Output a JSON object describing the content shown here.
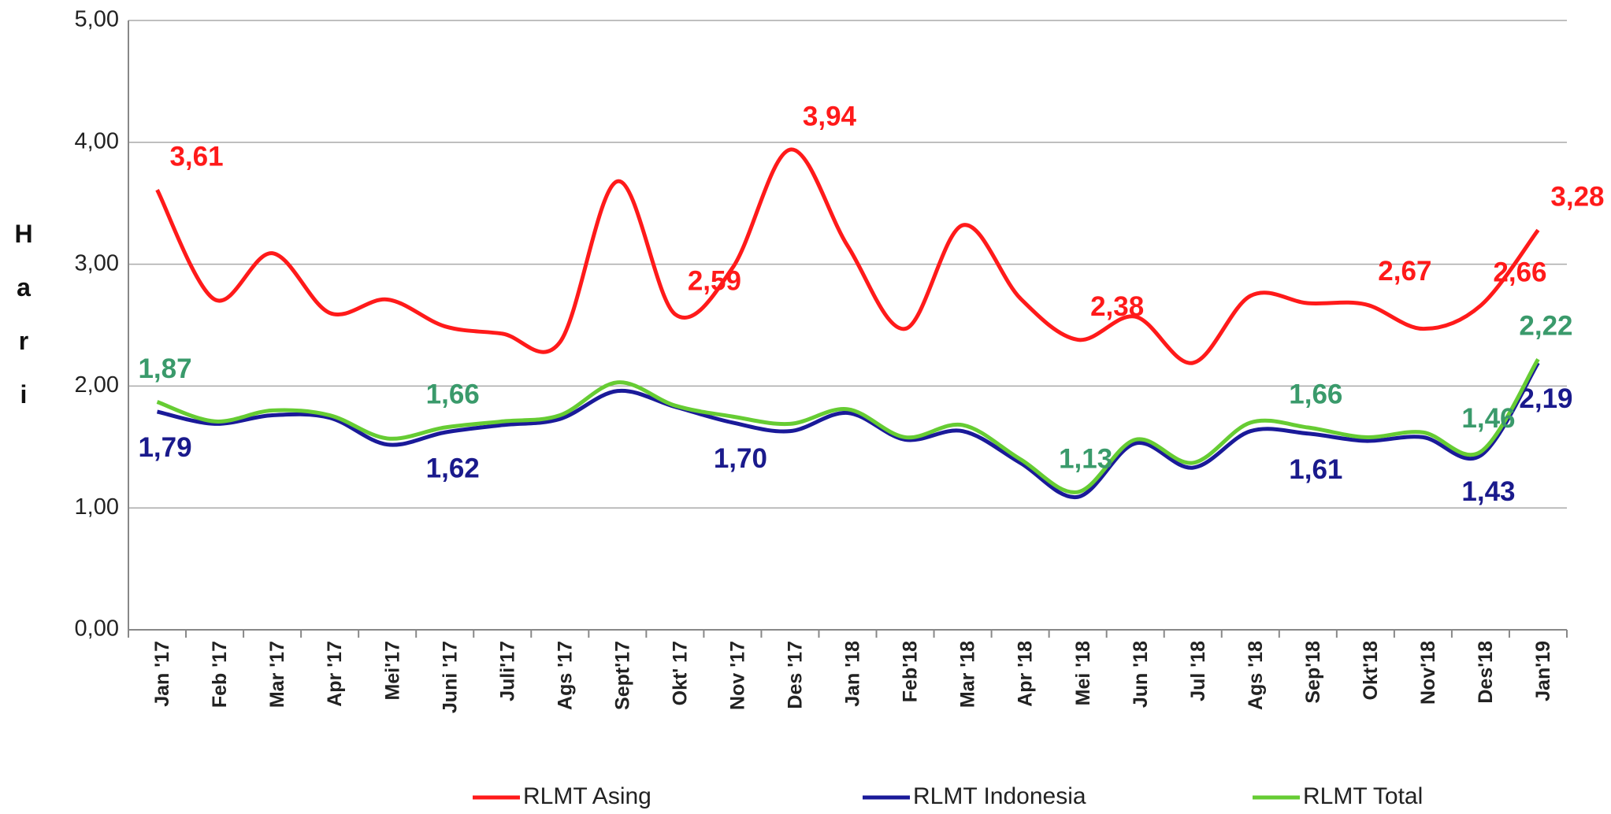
{
  "chart_data": {
    "type": "line",
    "ylabel": "Hari",
    "categories": [
      "Jan '17",
      "Feb '17",
      "Mar '17",
      "Apr '17",
      "Mei'17",
      "Juni '17",
      "Juli'17",
      "Ags '17",
      "Sept'17",
      "Okt' 17",
      "Nov '17",
      "Des '17",
      "Jan '18",
      "Feb'18",
      "Mar '18",
      "Apr '18",
      "Mei '18",
      "Jun '18",
      "Jul '18",
      "Ags '18",
      "Sep'18",
      "Okt'18",
      "Nov'18",
      "Des'18",
      "Jan'19"
    ],
    "series": [
      {
        "name": "RLMT Asing",
        "color": "#ff1a1a",
        "label_color": "#ff1a1a",
        "values": [
          3.61,
          2.71,
          3.09,
          2.6,
          2.71,
          2.49,
          2.43,
          2.36,
          3.68,
          2.59,
          2.97,
          3.94,
          3.15,
          2.47,
          3.32,
          2.72,
          2.38,
          2.57,
          2.19,
          2.74,
          2.68,
          2.67,
          2.47,
          2.66,
          3.28
        ],
        "value_labels": [
          "3,61",
          null,
          null,
          null,
          null,
          null,
          null,
          null,
          null,
          "2,59",
          null,
          "3,94",
          null,
          null,
          null,
          null,
          "2,38",
          null,
          null,
          null,
          null,
          "2,67",
          null,
          "2,66",
          "3,28"
        ]
      },
      {
        "name": "RLMT Indonesia",
        "color": "#1a1a99",
        "label_color": "#1a1a8c",
        "values": [
          1.79,
          1.69,
          1.76,
          1.74,
          1.52,
          1.62,
          1.68,
          1.73,
          1.96,
          1.83,
          1.7,
          1.63,
          1.78,
          1.56,
          1.63,
          1.37,
          1.09,
          1.53,
          1.33,
          1.63,
          1.61,
          1.55,
          1.58,
          1.43,
          2.19
        ],
        "value_labels": [
          "1,79",
          null,
          null,
          null,
          null,
          "1,62",
          null,
          null,
          null,
          null,
          "1,70",
          null,
          null,
          null,
          null,
          null,
          null,
          null,
          null,
          null,
          "1,61",
          null,
          null,
          "1,43",
          "2,19"
        ]
      },
      {
        "name": "RLMT Total",
        "color": "#66cc33",
        "label_color": "#3a9a6b",
        "values": [
          1.87,
          1.71,
          1.8,
          1.76,
          1.57,
          1.66,
          1.71,
          1.76,
          2.03,
          1.84,
          1.75,
          1.69,
          1.81,
          1.58,
          1.68,
          1.4,
          1.13,
          1.56,
          1.37,
          1.7,
          1.66,
          1.58,
          1.62,
          1.46,
          2.22
        ],
        "value_labels": [
          "1,87",
          null,
          null,
          null,
          null,
          "1,66",
          null,
          null,
          null,
          null,
          null,
          null,
          null,
          null,
          null,
          null,
          "1,13",
          null,
          null,
          null,
          "1,66",
          null,
          null,
          "1,46",
          "2,22"
        ]
      }
    ],
    "ylim": [
      0,
      5
    ],
    "yticks": [
      {
        "value": 0,
        "label": "0,00"
      },
      {
        "value": 1,
        "label": "1,00"
      },
      {
        "value": 2,
        "label": "2,00"
      },
      {
        "value": 3,
        "label": "3,00"
      },
      {
        "value": 4,
        "label": "4,00"
      },
      {
        "value": 5,
        "label": "5,00"
      }
    ],
    "grid": true,
    "legend": "bottom"
  }
}
